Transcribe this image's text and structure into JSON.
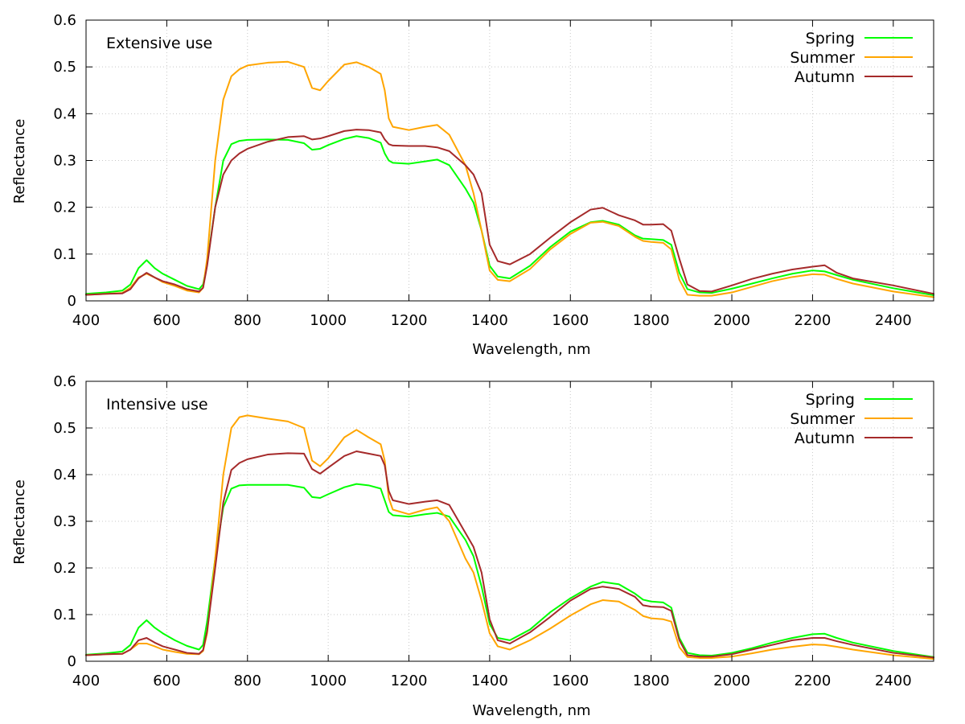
{
  "chart_data": [
    {
      "type": "line",
      "title": "Extensive use",
      "xlabel": "Wavelength, nm",
      "ylabel": "Reflectance",
      "xlim": [
        400,
        2500
      ],
      "ylim": [
        0,
        0.6
      ],
      "xticks": [
        "400",
        "600",
        "800",
        "1000",
        "1200",
        "1400",
        "1600",
        "1800",
        "2000",
        "2200",
        "2400"
      ],
      "yticks": [
        "0",
        "0.1",
        "0.2",
        "0.3",
        "0.4",
        "0.5",
        "0.6"
      ],
      "grid": true,
      "legend_position": "top-right",
      "x": [
        400,
        450,
        490,
        510,
        530,
        550,
        570,
        590,
        620,
        650,
        680,
        690,
        700,
        720,
        740,
        760,
        780,
        800,
        850,
        900,
        940,
        960,
        980,
        1000,
        1040,
        1070,
        1100,
        1130,
        1140,
        1150,
        1160,
        1200,
        1240,
        1270,
        1300,
        1340,
        1360,
        1380,
        1400,
        1420,
        1450,
        1500,
        1550,
        1600,
        1650,
        1680,
        1720,
        1760,
        1780,
        1800,
        1830,
        1850,
        1870,
        1890,
        1920,
        1950,
        2000,
        2050,
        2100,
        2150,
        2200,
        2230,
        2260,
        2300,
        2400,
        2500
      ],
      "series": [
        {
          "name": "Spring",
          "color": "#00ff00",
          "values": [
            0.015,
            0.018,
            0.022,
            0.035,
            0.07,
            0.087,
            0.07,
            0.058,
            0.045,
            0.032,
            0.025,
            0.035,
            0.08,
            0.2,
            0.3,
            0.335,
            0.342,
            0.344,
            0.345,
            0.344,
            0.337,
            0.323,
            0.325,
            0.333,
            0.346,
            0.352,
            0.348,
            0.338,
            0.315,
            0.3,
            0.295,
            0.293,
            0.298,
            0.302,
            0.29,
            0.24,
            0.21,
            0.15,
            0.075,
            0.052,
            0.048,
            0.075,
            0.115,
            0.148,
            0.168,
            0.171,
            0.163,
            0.14,
            0.133,
            0.132,
            0.13,
            0.12,
            0.06,
            0.025,
            0.018,
            0.017,
            0.026,
            0.037,
            0.048,
            0.058,
            0.065,
            0.063,
            0.055,
            0.045,
            0.027,
            0.012
          ]
        },
        {
          "name": "Summer",
          "color": "#ffa500",
          "values": [
            0.013,
            0.015,
            0.017,
            0.028,
            0.05,
            0.058,
            0.05,
            0.04,
            0.032,
            0.022,
            0.018,
            0.028,
            0.09,
            0.3,
            0.43,
            0.48,
            0.495,
            0.503,
            0.509,
            0.511,
            0.5,
            0.455,
            0.45,
            0.47,
            0.505,
            0.51,
            0.5,
            0.485,
            0.45,
            0.39,
            0.372,
            0.365,
            0.372,
            0.376,
            0.355,
            0.29,
            0.23,
            0.15,
            0.065,
            0.045,
            0.042,
            0.068,
            0.11,
            0.143,
            0.167,
            0.169,
            0.16,
            0.137,
            0.128,
            0.126,
            0.124,
            0.11,
            0.045,
            0.013,
            0.011,
            0.011,
            0.018,
            0.03,
            0.042,
            0.051,
            0.057,
            0.056,
            0.047,
            0.037,
            0.02,
            0.008
          ]
        },
        {
          "name": "Autumn",
          "color": "#a52a2a",
          "values": [
            0.013,
            0.015,
            0.016,
            0.025,
            0.048,
            0.06,
            0.05,
            0.042,
            0.035,
            0.025,
            0.02,
            0.028,
            0.075,
            0.2,
            0.27,
            0.3,
            0.315,
            0.325,
            0.34,
            0.35,
            0.352,
            0.345,
            0.347,
            0.352,
            0.363,
            0.366,
            0.365,
            0.36,
            0.345,
            0.335,
            0.332,
            0.331,
            0.331,
            0.328,
            0.32,
            0.29,
            0.27,
            0.23,
            0.12,
            0.085,
            0.078,
            0.1,
            0.135,
            0.168,
            0.195,
            0.199,
            0.183,
            0.172,
            0.163,
            0.163,
            0.164,
            0.15,
            0.09,
            0.035,
            0.021,
            0.02,
            0.033,
            0.047,
            0.058,
            0.067,
            0.073,
            0.076,
            0.06,
            0.048,
            0.033,
            0.015
          ]
        }
      ]
    },
    {
      "type": "line",
      "title": "Intensive use",
      "xlabel": "Wavelength, nm",
      "ylabel": "Reflectance",
      "xlim": [
        400,
        2500
      ],
      "ylim": [
        0,
        0.6
      ],
      "xticks": [
        "400",
        "600",
        "800",
        "1000",
        "1200",
        "1400",
        "1600",
        "1800",
        "2000",
        "2200",
        "2400"
      ],
      "yticks": [
        "0",
        "0.1",
        "0.2",
        "0.3",
        "0.4",
        "0.5",
        "0.6"
      ],
      "grid": true,
      "legend_position": "top-right",
      "x": [
        400,
        450,
        490,
        510,
        530,
        550,
        570,
        590,
        620,
        650,
        680,
        690,
        700,
        720,
        740,
        760,
        780,
        800,
        850,
        900,
        940,
        960,
        980,
        1000,
        1040,
        1070,
        1100,
        1130,
        1140,
        1150,
        1160,
        1200,
        1240,
        1270,
        1300,
        1340,
        1360,
        1380,
        1400,
        1420,
        1450,
        1500,
        1550,
        1600,
        1650,
        1680,
        1720,
        1760,
        1780,
        1800,
        1830,
        1850,
        1870,
        1890,
        1920,
        1950,
        2000,
        2050,
        2100,
        2150,
        2200,
        2230,
        2260,
        2300,
        2400,
        2500
      ],
      "series": [
        {
          "name": "Spring",
          "color": "#00ff00",
          "values": [
            0.014,
            0.017,
            0.021,
            0.035,
            0.072,
            0.088,
            0.072,
            0.06,
            0.045,
            0.033,
            0.025,
            0.035,
            0.085,
            0.22,
            0.33,
            0.37,
            0.377,
            0.378,
            0.378,
            0.378,
            0.372,
            0.352,
            0.35,
            0.358,
            0.373,
            0.38,
            0.377,
            0.37,
            0.345,
            0.32,
            0.313,
            0.31,
            0.315,
            0.318,
            0.31,
            0.26,
            0.225,
            0.16,
            0.08,
            0.05,
            0.045,
            0.068,
            0.105,
            0.135,
            0.16,
            0.17,
            0.165,
            0.145,
            0.132,
            0.128,
            0.126,
            0.115,
            0.05,
            0.018,
            0.013,
            0.012,
            0.018,
            0.028,
            0.04,
            0.05,
            0.058,
            0.059,
            0.05,
            0.04,
            0.022,
            0.009
          ]
        },
        {
          "name": "Summer",
          "color": "#ffa500",
          "values": [
            0.013,
            0.015,
            0.016,
            0.025,
            0.038,
            0.038,
            0.032,
            0.025,
            0.02,
            0.016,
            0.015,
            0.022,
            0.06,
            0.22,
            0.4,
            0.5,
            0.523,
            0.527,
            0.52,
            0.514,
            0.5,
            0.43,
            0.418,
            0.435,
            0.48,
            0.496,
            0.48,
            0.465,
            0.43,
            0.35,
            0.325,
            0.315,
            0.325,
            0.33,
            0.3,
            0.22,
            0.19,
            0.13,
            0.06,
            0.032,
            0.025,
            0.045,
            0.07,
            0.098,
            0.122,
            0.131,
            0.128,
            0.11,
            0.097,
            0.092,
            0.09,
            0.085,
            0.03,
            0.009,
            0.007,
            0.007,
            0.01,
            0.017,
            0.025,
            0.031,
            0.036,
            0.035,
            0.031,
            0.025,
            0.013,
            0.005
          ]
        },
        {
          "name": "Autumn",
          "color": "#a52a2a",
          "values": [
            0.013,
            0.015,
            0.016,
            0.025,
            0.045,
            0.05,
            0.04,
            0.032,
            0.025,
            0.018,
            0.016,
            0.024,
            0.065,
            0.2,
            0.34,
            0.41,
            0.425,
            0.433,
            0.443,
            0.446,
            0.445,
            0.412,
            0.402,
            0.415,
            0.44,
            0.45,
            0.445,
            0.44,
            0.42,
            0.365,
            0.345,
            0.337,
            0.342,
            0.345,
            0.335,
            0.275,
            0.245,
            0.19,
            0.09,
            0.045,
            0.038,
            0.062,
            0.095,
            0.13,
            0.155,
            0.16,
            0.155,
            0.138,
            0.12,
            0.117,
            0.116,
            0.108,
            0.045,
            0.013,
            0.01,
            0.01,
            0.015,
            0.025,
            0.035,
            0.045,
            0.05,
            0.05,
            0.043,
            0.035,
            0.018,
            0.008
          ]
        }
      ]
    }
  ]
}
